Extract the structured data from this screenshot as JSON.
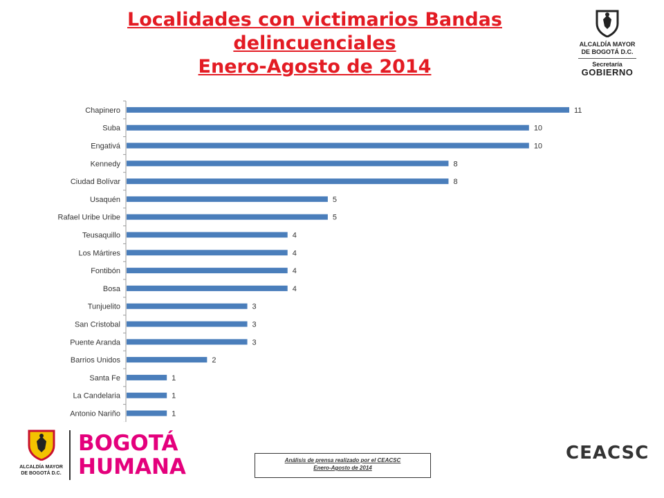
{
  "title": {
    "line1": "Localidades con victimarios Bandas",
    "line2": "delincuenciales",
    "line3": "Enero-Agosto de 2014"
  },
  "logo_top": {
    "line1": "ALCALDÍA MAYOR",
    "line2": "DE BOGOTÁ D.C.",
    "line3": "Secretaría",
    "line4": "GOBIERNO"
  },
  "footer": {
    "line1": "Análisis de prensa realizado por el CEACSC",
    "line2": "Enero-Agosto de 2014"
  },
  "logo_bottom_left": {
    "line1": "ALCALDÍA MAYOR",
    "line2": "DE BOGOTÁ D.C."
  },
  "bogota_humana": {
    "word1": "BOGOTÁ",
    "word2": "HUMANA"
  },
  "ceacsc": {
    "word": "EACSC",
    "letter": "C"
  },
  "colors": {
    "title": "#e31b23",
    "bar": "#4a7ebb",
    "bogota_humana": "#e4007c"
  },
  "chart_data": {
    "type": "bar",
    "orientation": "horizontal",
    "categories": [
      "Chapinero",
      "Suba",
      "Engativá",
      "Kennedy",
      "Ciudad Bolívar",
      "Usaquén",
      "Rafael Uribe Uribe",
      "Teusaquillo",
      "Los Mártires",
      "Fontibón",
      "Bosa",
      "Tunjuelito",
      "San Cristobal",
      "Puente Aranda",
      "Barrios Unidos",
      "Santa Fe",
      "La Candelaria",
      "Antonio Nariño"
    ],
    "values": [
      11,
      10,
      10,
      8,
      8,
      5,
      5,
      4,
      4,
      4,
      4,
      3,
      3,
      3,
      2,
      1,
      1,
      1
    ],
    "xlim": [
      0,
      11
    ],
    "grid": false,
    "legend": "none",
    "data_labels": true
  }
}
